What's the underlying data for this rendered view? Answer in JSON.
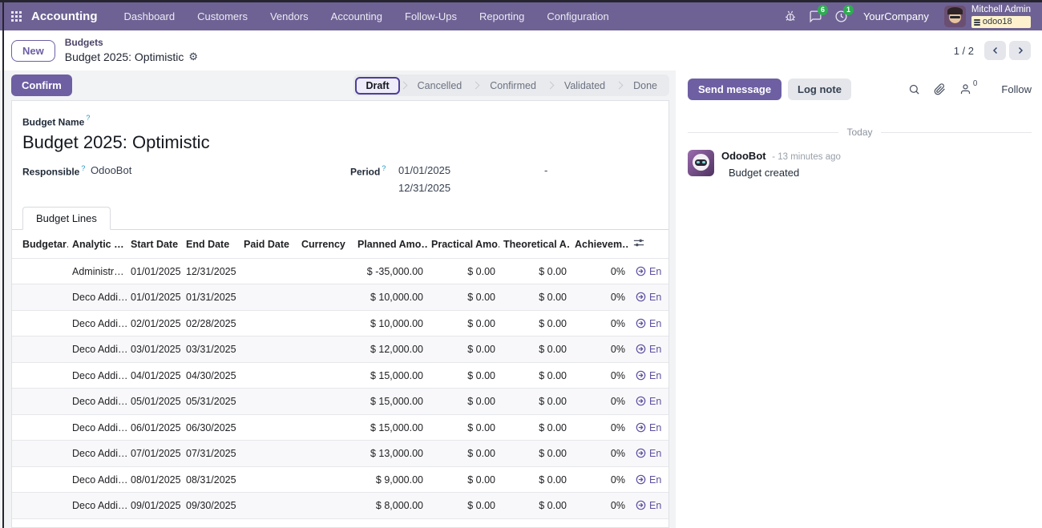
{
  "navbar": {
    "app_name": "Accounting",
    "menu_items": [
      "Dashboard",
      "Customers",
      "Vendors",
      "Accounting",
      "Follow-Ups",
      "Reporting",
      "Configuration"
    ],
    "messages_badge": "6",
    "activities_badge": "1",
    "company_name": "YourCompany",
    "user_name": "Mitchell Admin",
    "database_name": "odoo18"
  },
  "control_panel": {
    "new_button": "New",
    "breadcrumb_parent": "Budgets",
    "breadcrumb_current": "Budget 2025: Optimistic",
    "pager_value": "1 / 2"
  },
  "statusbar": {
    "confirm_button": "Confirm",
    "steps": [
      "Draft",
      "Cancelled",
      "Confirmed",
      "Validated",
      "Done"
    ],
    "active_step": "Draft"
  },
  "form": {
    "help_marker": "?",
    "budget_name_label": "Budget Name",
    "budget_name_value": "Budget 2025: Optimistic",
    "responsible_label": "Responsible",
    "responsible_value": "OdooBot",
    "period_label": "Period",
    "period_start": "01/01/2025",
    "period_separator": "-",
    "period_end": "12/31/2025",
    "tab_label": "Budget Lines"
  },
  "table": {
    "headers": [
      "Budgetar…",
      "Analytic …",
      "Start Date",
      "End Date",
      "Paid Date",
      "Currency",
      "Planned Amo…",
      "Practical Amo…",
      "Theoretical A…",
      "Achievem…"
    ],
    "rows": [
      {
        "budgetary": "",
        "analytic": "Administr…",
        "start": "01/01/2025",
        "end": "12/31/2025",
        "paid": "",
        "currency": "",
        "planned": "$ -35,000.00",
        "practical": "$ 0.00",
        "theoretical": "$ 0.00",
        "achievement": "0%",
        "action": "En"
      },
      {
        "budgetary": "",
        "analytic": "Deco Addi…",
        "start": "01/01/2025",
        "end": "01/31/2025",
        "paid": "",
        "currency": "",
        "planned": "$ 10,000.00",
        "practical": "$ 0.00",
        "theoretical": "$ 0.00",
        "achievement": "0%",
        "action": "En"
      },
      {
        "budgetary": "",
        "analytic": "Deco Addi…",
        "start": "02/01/2025",
        "end": "02/28/2025",
        "paid": "",
        "currency": "",
        "planned": "$ 10,000.00",
        "practical": "$ 0.00",
        "theoretical": "$ 0.00",
        "achievement": "0%",
        "action": "En"
      },
      {
        "budgetary": "",
        "analytic": "Deco Addi…",
        "start": "03/01/2025",
        "end": "03/31/2025",
        "paid": "",
        "currency": "",
        "planned": "$ 12,000.00",
        "practical": "$ 0.00",
        "theoretical": "$ 0.00",
        "achievement": "0%",
        "action": "En"
      },
      {
        "budgetary": "",
        "analytic": "Deco Addi…",
        "start": "04/01/2025",
        "end": "04/30/2025",
        "paid": "",
        "currency": "",
        "planned": "$ 15,000.00",
        "practical": "$ 0.00",
        "theoretical": "$ 0.00",
        "achievement": "0%",
        "action": "En"
      },
      {
        "budgetary": "",
        "analytic": "Deco Addi…",
        "start": "05/01/2025",
        "end": "05/31/2025",
        "paid": "",
        "currency": "",
        "planned": "$ 15,000.00",
        "practical": "$ 0.00",
        "theoretical": "$ 0.00",
        "achievement": "0%",
        "action": "En"
      },
      {
        "budgetary": "",
        "analytic": "Deco Addi…",
        "start": "06/01/2025",
        "end": "06/30/2025",
        "paid": "",
        "currency": "",
        "planned": "$ 15,000.00",
        "practical": "$ 0.00",
        "theoretical": "$ 0.00",
        "achievement": "0%",
        "action": "En"
      },
      {
        "budgetary": "",
        "analytic": "Deco Addi…",
        "start": "07/01/2025",
        "end": "07/31/2025",
        "paid": "",
        "currency": "",
        "planned": "$ 13,000.00",
        "practical": "$ 0.00",
        "theoretical": "$ 0.00",
        "achievement": "0%",
        "action": "En"
      },
      {
        "budgetary": "",
        "analytic": "Deco Addi…",
        "start": "08/01/2025",
        "end": "08/31/2025",
        "paid": "",
        "currency": "",
        "planned": "$ 9,000.00",
        "practical": "$ 0.00",
        "theoretical": "$ 0.00",
        "achievement": "0%",
        "action": "En"
      },
      {
        "budgetary": "",
        "analytic": "Deco Addi…",
        "start": "09/01/2025",
        "end": "09/30/2025",
        "paid": "",
        "currency": "",
        "planned": "$ 8,000.00",
        "practical": "$ 0.00",
        "theoretical": "$ 0.00",
        "achievement": "0%",
        "action": "En"
      }
    ]
  },
  "chatter": {
    "send_message_button": "Send message",
    "log_note_button": "Log note",
    "followers_count": "0",
    "follow_button": "Follow",
    "date_divider": "Today",
    "message": {
      "author": "OdooBot",
      "time_label": "- 13 minutes ago",
      "body": "Budget created"
    }
  },
  "colors": {
    "navbar_bg": "#6e6294",
    "primary_button": "#6e5fa3",
    "badge_green": "#2fac52",
    "database_badge_bg": "#fdf2cd",
    "link_purple": "#5e50a0",
    "statusbar_active_border": "#4d3f99"
  }
}
